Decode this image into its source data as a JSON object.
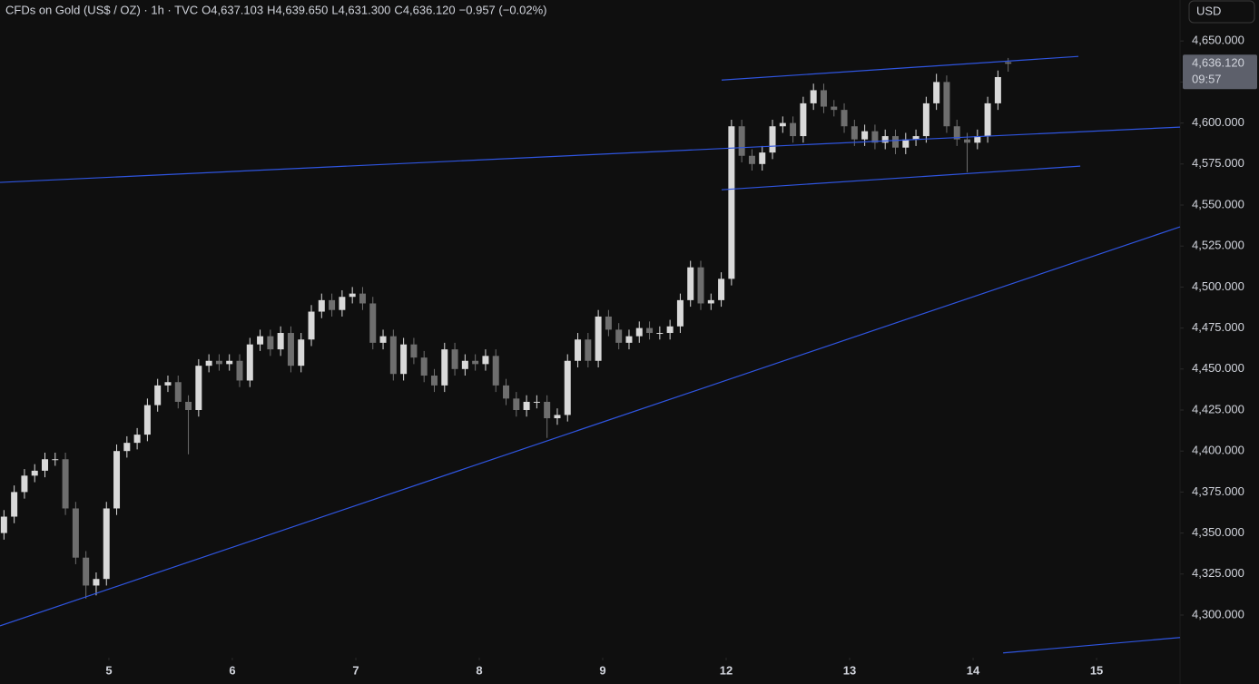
{
  "chart_data": {
    "type": "candlestick",
    "title": "CFDs on Gold (US$ / OZ) · 1h · TVC",
    "ohlc_header": [
      {
        "key": "O",
        "value": 4637.103,
        "label": "4,637.103"
      },
      {
        "key": "H",
        "value": 4639.65,
        "label": "4,639.650"
      },
      {
        "key": "L",
        "value": 4631.3,
        "label": "4,631.300"
      },
      {
        "key": "C",
        "value": 4636.12,
        "label": "4,636.120"
      }
    ],
    "change": {
      "value": -0.957,
      "label": "−0.957 (−0.02%)"
    },
    "currency": "USD",
    "last_price": {
      "value": 4636.12,
      "label": "4,636.120"
    },
    "countdown": "09:57",
    "up_color": "#d9d9d9",
    "down_color": "#6e6e6e",
    "line_color": "#2f55e0",
    "xlim": [
      -0.882,
      8.676
    ],
    "ylim": [
      4274,
      4675
    ],
    "xticks": [
      {
        "value": 0,
        "label": "5"
      },
      {
        "value": 1,
        "label": "6"
      },
      {
        "value": 2,
        "label": "7"
      },
      {
        "value": 3,
        "label": "8"
      },
      {
        "value": 4,
        "label": "9"
      },
      {
        "value": 5,
        "label": "12"
      },
      {
        "value": 6,
        "label": "13"
      },
      {
        "value": 7,
        "label": "14"
      },
      {
        "value": 8,
        "label": "15"
      }
    ],
    "yticks": [
      {
        "value": 4300,
        "label": "4,300.000"
      },
      {
        "value": 4325,
        "label": "4,325.000"
      },
      {
        "value": 4350,
        "label": "4,350.000"
      },
      {
        "value": 4375,
        "label": "4,375.000"
      },
      {
        "value": 4400,
        "label": "4,400.000"
      },
      {
        "value": 4425,
        "label": "4,425.000"
      },
      {
        "value": 4450,
        "label": "4,450.000"
      },
      {
        "value": 4475,
        "label": "4,475.000"
      },
      {
        "value": 4500,
        "label": "4,500.000"
      },
      {
        "value": 4525,
        "label": "4,525.000"
      },
      {
        "value": 4550,
        "label": "4,550.000"
      },
      {
        "value": 4575,
        "label": "4,575.000"
      },
      {
        "value": 4600,
        "label": "4,600.000"
      },
      {
        "value": 4625,
        "label": "4,625.000"
      },
      {
        "value": 4650,
        "label": "4,650.000"
      }
    ],
    "x": [
      -0.85,
      -0.767,
      -0.684,
      -0.601,
      -0.518,
      -0.435,
      -0.352,
      -0.269,
      -0.186,
      -0.103,
      -0.02,
      0.063,
      0.146,
      0.229,
      0.312,
      0.395,
      0.478,
      0.561,
      0.644,
      0.727,
      0.81,
      0.893,
      0.976,
      1.059,
      1.142,
      1.225,
      1.308,
      1.391,
      1.474,
      1.557,
      1.64,
      1.723,
      1.806,
      1.889,
      1.972,
      2.055,
      2.138,
      2.221,
      2.304,
      2.387,
      2.47,
      2.553,
      2.636,
      2.719,
      2.802,
      2.885,
      2.968,
      3.051,
      3.134,
      3.217,
      3.3,
      3.383,
      3.466,
      3.549,
      3.632,
      3.715,
      3.798,
      3.881,
      3.964,
      4.047,
      4.13,
      4.213,
      4.296,
      4.379,
      4.462,
      4.545,
      4.628,
      4.711,
      4.794,
      4.877,
      4.96,
      5.043,
      5.126,
      5.209,
      5.292,
      5.375,
      5.458,
      5.541,
      5.624,
      5.707,
      5.79,
      5.873,
      5.956,
      6.039,
      6.122,
      6.205,
      6.288,
      6.371,
      6.454,
      6.537,
      6.62,
      6.703,
      6.786,
      6.869,
      6.952,
      7.035,
      7.118,
      7.201,
      7.284
    ],
    "open": [
      4350,
      4360,
      4375,
      4385,
      4388,
      4395,
      4395,
      4365,
      4335,
      4318,
      4322,
      4365,
      4400,
      4405,
      4410,
      4428,
      4440,
      4442,
      4430,
      4425,
      4452,
      4455,
      4453,
      4455,
      4443,
      4465,
      4470,
      4462,
      4472,
      4452,
      4468,
      4485,
      4492,
      4486,
      4494,
      4496,
      4490,
      4466,
      4470,
      4447,
      4465,
      4457,
      4446,
      4440,
      4462,
      4450,
      4455,
      4453,
      4458,
      4440,
      4432,
      4425,
      4430,
      4430,
      4420,
      4422,
      4455,
      4468,
      4455,
      4482,
      4474,
      4466,
      4470,
      4475,
      4472,
      4472,
      4476,
      4492,
      4512,
      4490,
      4492,
      4505,
      4598,
      4580,
      4575,
      4582,
      4598,
      4600,
      4592,
      4612,
      4620,
      4610,
      4608,
      4598,
      4590,
      4595,
      4588,
      4592,
      4585,
      4590,
      4592,
      4612,
      4625,
      4598,
      4590,
      4588,
      4592,
      4612,
      4637.103
    ],
    "high": [
      4364,
      4379,
      4389,
      4392,
      4399,
      4399,
      4399,
      4369,
      4339,
      4326,
      4369,
      4404,
      4409,
      4414,
      4432,
      4444,
      4446,
      4446,
      4434,
      4456,
      4459,
      4459,
      4459,
      4459,
      4469,
      4474,
      4474,
      4476,
      4476,
      4472,
      4489,
      4496,
      4496,
      4498,
      4500,
      4500,
      4494,
      4474,
      4474,
      4469,
      4469,
      4461,
      4450,
      4466,
      4466,
      4459,
      4459,
      4462,
      4462,
      4444,
      4436,
      4434,
      4434,
      4434,
      4426,
      4459,
      4472,
      4472,
      4486,
      4486,
      4478,
      4474,
      4479,
      4479,
      4476,
      4480,
      4496,
      4516,
      4516,
      4496,
      4509,
      4602,
      4602,
      4584,
      4586,
      4602,
      4604,
      4604,
      4616,
      4624,
      4624,
      4614,
      4612,
      4602,
      4599,
      4599,
      4596,
      4596,
      4594,
      4596,
      4616,
      4630,
      4629,
      4602,
      4594,
      4596,
      4616,
      4632,
      4639.65
    ],
    "low": [
      4346,
      4356,
      4371,
      4381,
      4384,
      4391,
      4361,
      4331,
      4310,
      4312,
      4318,
      4361,
      4396,
      4401,
      4406,
      4424,
      4436,
      4426,
      4398,
      4421,
      4448,
      4449,
      4449,
      4439,
      4439,
      4461,
      4458,
      4458,
      4448,
      4448,
      4464,
      4481,
      4482,
      4482,
      4490,
      4486,
      4462,
      4462,
      4443,
      4443,
      4453,
      4442,
      4436,
      4436,
      4446,
      4446,
      4449,
      4449,
      4436,
      4428,
      4421,
      4421,
      4426,
      4408,
      4416,
      4418,
      4451,
      4451,
      4451,
      4470,
      4462,
      4462,
      4466,
      4468,
      4468,
      4468,
      4472,
      4488,
      4486,
      4486,
      4488,
      4501,
      4576,
      4571,
      4571,
      4578,
      4594,
      4588,
      4588,
      4608,
      4606,
      4604,
      4594,
      4586,
      4586,
      4584,
      4584,
      4581,
      4581,
      4586,
      4588,
      4608,
      4594,
      4586,
      4570,
      4584,
      4588,
      4608,
      4631.3
    ],
    "close": [
      4360,
      4375,
      4385,
      4388,
      4395,
      4395,
      4365,
      4335,
      4318,
      4322,
      4365,
      4400,
      4405,
      4410,
      4428,
      4440,
      4442,
      4430,
      4425,
      4452,
      4455,
      4453,
      4455,
      4443,
      4465,
      4470,
      4462,
      4472,
      4452,
      4468,
      4485,
      4492,
      4486,
      4494,
      4496,
      4490,
      4466,
      4470,
      4447,
      4465,
      4457,
      4446,
      4440,
      4462,
      4450,
      4455,
      4453,
      4458,
      4440,
      4432,
      4425,
      4430,
      4430,
      4420,
      4422,
      4455,
      4468,
      4455,
      4482,
      4474,
      4466,
      4470,
      4475,
      4472,
      4472,
      4476,
      4492,
      4512,
      4490,
      4492,
      4505,
      4598,
      4580,
      4575,
      4582,
      4598,
      4600,
      4592,
      4612,
      4620,
      4610,
      4608,
      4598,
      4590,
      4595,
      4588,
      4592,
      4585,
      4590,
      4592,
      4612,
      4625,
      4598,
      4590,
      4588,
      4592,
      4612,
      4628,
      4636.12
    ],
    "lines": [
      {
        "x": [
          4.963,
          7.853
        ],
        "y": [
          4626.2,
          4640.6
        ]
      },
      {
        "x": [
          -0.882,
          8.676
        ],
        "y": [
          4563.8,
          4597.5
        ]
      },
      {
        "x": [
          4.963,
          7.868
        ],
        "y": [
          4559.3,
          4573.7
        ]
      },
      {
        "x": [
          -0.882,
          8.676
        ],
        "y": [
          4293.4,
          4536.7
        ]
      },
      {
        "x": [
          7.243,
          8.676
        ],
        "y": [
          4276.9,
          4286.3
        ]
      }
    ]
  }
}
